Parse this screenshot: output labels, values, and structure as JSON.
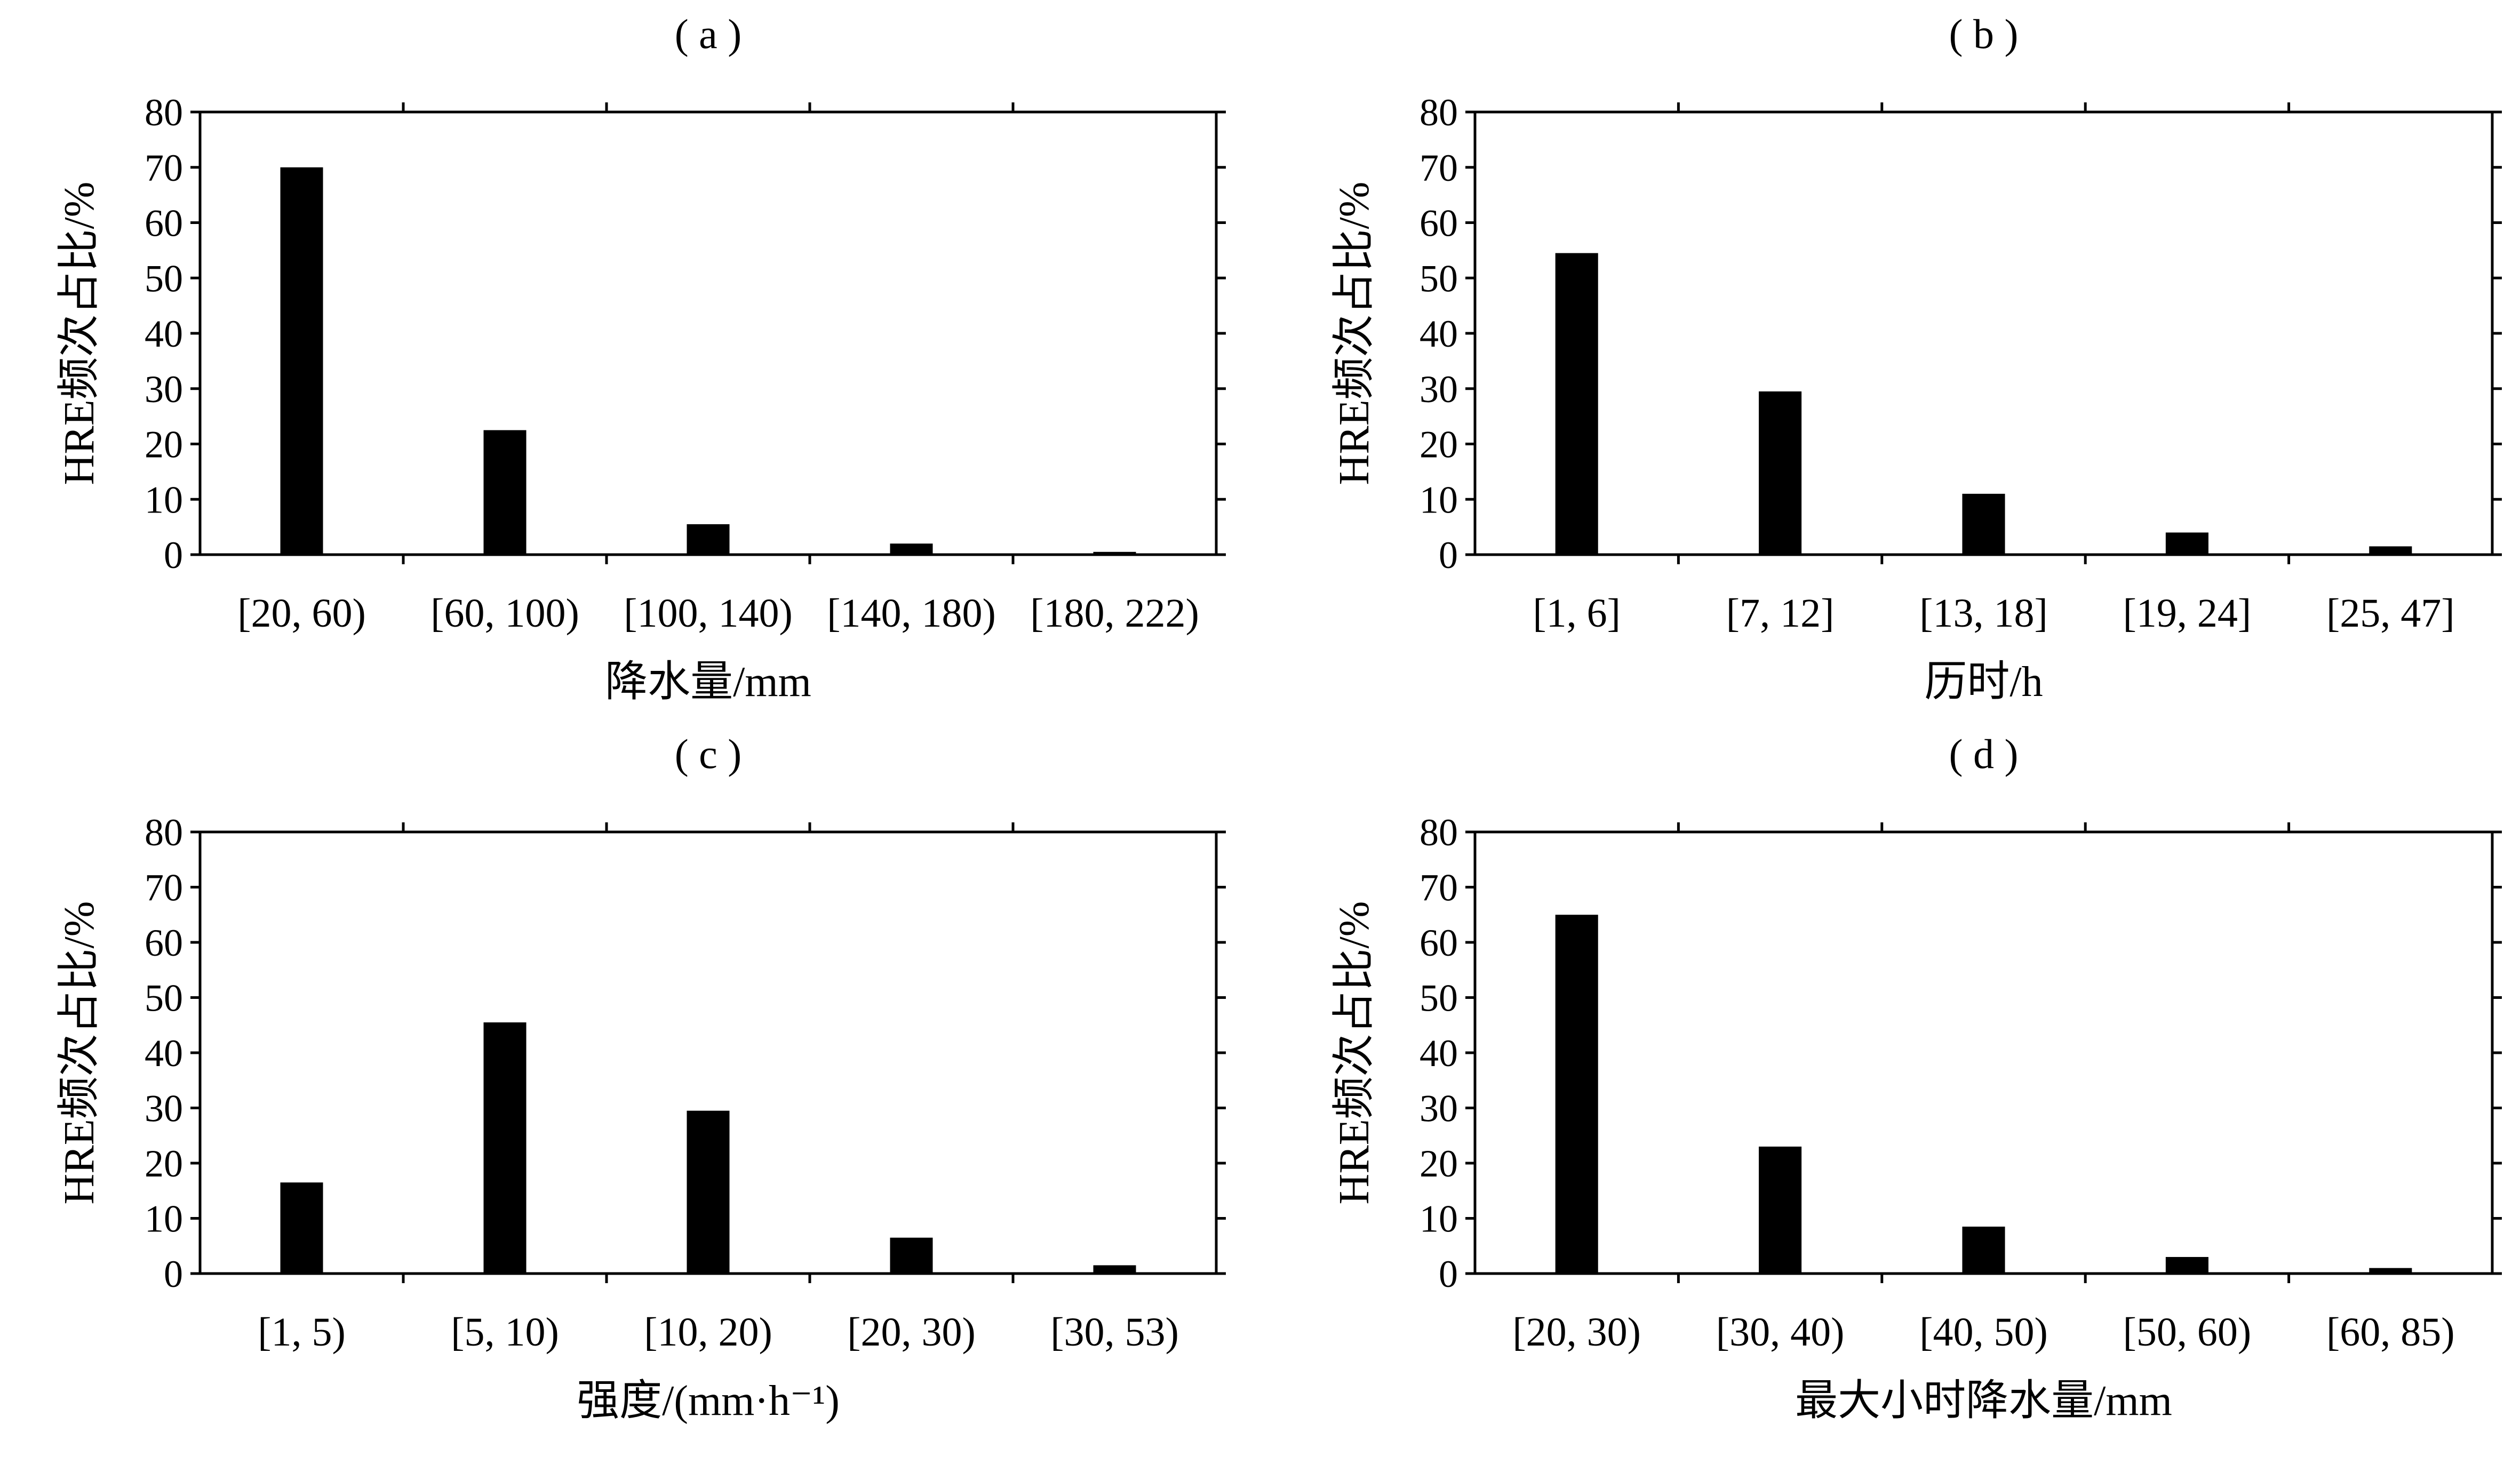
{
  "chart_data": [
    {
      "type": "bar",
      "title": "( a )",
      "categories": [
        "[20, 60)",
        "[60, 100)",
        "[100, 140)",
        "[140, 180)",
        "[180, 222)"
      ],
      "values": [
        70,
        22.5,
        5.5,
        2,
        0.5
      ],
      "xlabel": "降水量/mm",
      "ylabel": "HRE频次占比/%",
      "ylim": [
        0,
        80
      ],
      "yticks": [
        0,
        10,
        20,
        30,
        40,
        50,
        60,
        70,
        80
      ],
      "grid": false
    },
    {
      "type": "bar",
      "title": "( b )",
      "categories": [
        "[1, 6]",
        "[7, 12]",
        "[13, 18]",
        "[19, 24]",
        "[25, 47]"
      ],
      "values": [
        54.5,
        29.5,
        11,
        4,
        1.5
      ],
      "xlabel": "历时/h",
      "ylabel": "HRE频次占比/%",
      "ylim": [
        0,
        80
      ],
      "yticks": [
        0,
        10,
        20,
        30,
        40,
        50,
        60,
        70,
        80
      ],
      "grid": false
    },
    {
      "type": "bar",
      "title": "( c )",
      "categories": [
        "[1, 5)",
        "[5, 10)",
        "[10, 20)",
        "[20, 30)",
        "[30, 53)"
      ],
      "values": [
        16.5,
        45.5,
        29.5,
        6.5,
        1.5
      ],
      "xlabel": "强度/(mm·h⁻¹)",
      "ylabel": "HRE频次占比/%",
      "ylim": [
        0,
        80
      ],
      "yticks": [
        0,
        10,
        20,
        30,
        40,
        50,
        60,
        70,
        80
      ],
      "grid": false
    },
    {
      "type": "bar",
      "title": "( d )",
      "categories": [
        "[20, 30)",
        "[30, 40)",
        "[40, 50)",
        "[50, 60)",
        "[60, 85)"
      ],
      "values": [
        65,
        23,
        8.5,
        3,
        1
      ],
      "xlabel": "最大小时降水量/mm",
      "ylabel": "HRE频次占比/%",
      "ylim": [
        0,
        80
      ],
      "yticks": [
        0,
        10,
        20,
        30,
        40,
        50,
        60,
        70,
        80
      ],
      "grid": false
    }
  ]
}
